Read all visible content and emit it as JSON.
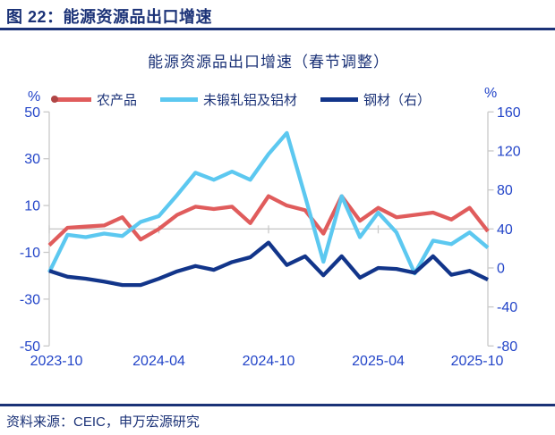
{
  "header": {
    "title": "图 22：能源资源品出口增速"
  },
  "footer": {
    "source": "资料来源：CEIC，申万宏源研究"
  },
  "colors": {
    "navy_text": "#1B3277",
    "axis_label_blue": "#2244C8",
    "grid_gray": "#C9C9C9",
    "legend_dot_red": "#B04545"
  },
  "chart_data": {
    "type": "line",
    "title": "能源资源品出口增速（春节调整）",
    "x": [
      "2023-10",
      "2023-11",
      "2023-12",
      "2024-01",
      "2024-02",
      "2024-03",
      "2024-04",
      "2024-05",
      "2024-06",
      "2024-07",
      "2024-08",
      "2024-09",
      "2024-10",
      "2024-11",
      "2024-12",
      "2025-01",
      "2025-02",
      "2025-03",
      "2025-04",
      "2025-05",
      "2025-06",
      "2025-07",
      "2025-08",
      "2025-09",
      "2025-10"
    ],
    "x_tick_labels": [
      "2023-10",
      "2024-04",
      "2024-10",
      "2025-04",
      "2025-10"
    ],
    "left_axis": {
      "unit": "%",
      "min": -50,
      "max": 50,
      "ticks": [
        50,
        30,
        10,
        -10,
        -30,
        -50
      ]
    },
    "right_axis": {
      "unit": "%",
      "min": -80,
      "max": 160,
      "ticks": [
        160,
        120,
        80,
        40,
        0,
        -40,
        -80
      ]
    },
    "grid": "zero-line-only",
    "legend_position": "top",
    "series": [
      {
        "name": "农产品",
        "axis": "left",
        "color": "#E05C5C",
        "values": [
          -7,
          0.5,
          1,
          1.5,
          5,
          -4.5,
          0,
          6,
          9.5,
          8.5,
          9.5,
          2.5,
          14,
          10,
          8,
          -2,
          14,
          3.5,
          9,
          5,
          6,
          7,
          4,
          9,
          -1
        ]
      },
      {
        "name": "未锻轧铝及铝材",
        "axis": "left",
        "color": "#5CC8F0",
        "values": [
          -18.5,
          -2.5,
          -3.5,
          -2,
          -3,
          3,
          5.5,
          14.5,
          24,
          21,
          24.5,
          21,
          32,
          41,
          14,
          -14,
          14,
          -3.5,
          7,
          -1.5,
          -19,
          -5,
          -6.5,
          -1.5,
          -8
        ]
      },
      {
        "name": "钢材（右）",
        "axis": "right",
        "color": "#12358A",
        "values": [
          -3,
          -9,
          -11,
          -14,
          -17.5,
          -17.5,
          -11,
          -3.5,
          2,
          -2,
          6,
          11,
          26,
          3,
          12,
          -7.5,
          12,
          -10,
          0,
          -1,
          -5,
          12,
          -7,
          -3,
          -12
        ]
      }
    ]
  }
}
